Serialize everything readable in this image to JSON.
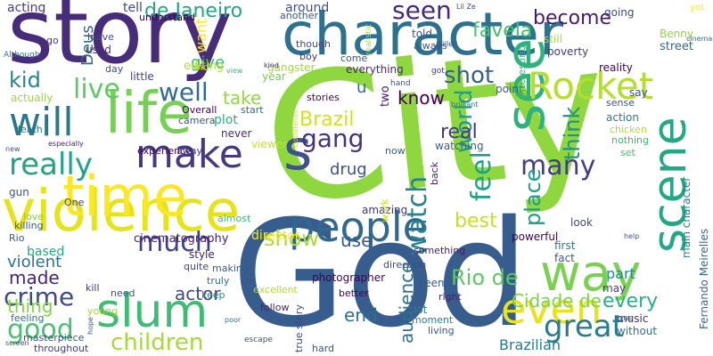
{
  "words": [
    {
      "text": "City",
      "color": "#8ed73f"
    },
    {
      "text": "God",
      "color": "#365d8d"
    },
    {
      "text": "story",
      "color": "#472c7a"
    },
    {
      "text": "character",
      "color": "#2c718e"
    },
    {
      "text": "violence",
      "color": "#e4e419"
    },
    {
      "text": "life",
      "color": "#75d054"
    },
    {
      "text": "time",
      "color": "#fde725"
    },
    {
      "text": "make",
      "color": "#443983"
    },
    {
      "text": "s",
      "color": "#3b528b"
    },
    {
      "text": "people",
      "color": "#31688e"
    },
    {
      "text": "way",
      "color": "#7ad151"
    },
    {
      "text": "see",
      "color": "#2db27d"
    },
    {
      "text": "Rocket",
      "color": "#b5de2b"
    },
    {
      "text": "scene",
      "color": "#22a884"
    },
    {
      "text": "slum",
      "color": "#3dbc74"
    },
    {
      "text": "even",
      "color": "#e7e419"
    },
    {
      "text": "will",
      "color": "#2a788e"
    },
    {
      "text": "really",
      "color": "#20a386"
    },
    {
      "text": "live",
      "color": "#5ec962"
    },
    {
      "text": "gang",
      "color": "#46337e"
    },
    {
      "text": "watch",
      "color": "#26828e"
    },
    {
      "text": "feel",
      "color": "#1fa187"
    },
    {
      "text": "great",
      "color": "#287c8e"
    },
    {
      "text": "good",
      "color": "#4ac16d"
    },
    {
      "text": "crime",
      "color": "#3e4a89"
    },
    {
      "text": "children",
      "color": "#a5db36"
    },
    {
      "text": "many",
      "color": "#433e85"
    },
    {
      "text": "much",
      "color": "#414287"
    },
    {
      "text": "well",
      "color": "#2f6c8e"
    },
    {
      "text": "world",
      "color": "#1f9e89"
    },
    {
      "text": "seen",
      "color": "#482878"
    },
    {
      "text": "shot",
      "color": "#33638d"
    },
    {
      "text": "kid",
      "color": "#25848e"
    },
    {
      "text": "show",
      "color": "#addc30"
    },
    {
      "text": "Rio de",
      "color": "#5ec962"
    },
    {
      "text": "place",
      "color": "#1e9b8a"
    },
    {
      "text": "think",
      "color": "#21918c"
    },
    {
      "text": "best",
      "color": "#c8e020"
    },
    {
      "text": "become",
      "color": "#481a6c"
    },
    {
      "text": "favela",
      "color": "#44bf70"
    },
    {
      "text": "Brazil",
      "color": "#d2e21b"
    },
    {
      "text": "de Janeiro",
      "color": "#22a785"
    },
    {
      "text": "drug",
      "color": "#3b528b"
    },
    {
      "text": "real",
      "color": "#453882"
    },
    {
      "text": "Cidade de",
      "color": "#7ad151"
    },
    {
      "text": "every",
      "color": "#29af7f"
    },
    {
      "text": "audience",
      "color": "#2d708e"
    },
    {
      "text": "end",
      "color": "#2e6e8e"
    },
    {
      "text": "actor",
      "color": "#3f4788"
    },
    {
      "text": "made",
      "color": "#482475"
    },
    {
      "text": "use",
      "color": "#38598c"
    },
    {
      "text": "thing",
      "color": "#84d44b"
    },
    {
      "text": "violent",
      "color": "#2c728e"
    },
    {
      "text": "take",
      "color": "#90d743"
    },
    {
      "text": "know",
      "color": "#440154"
    },
    {
      "text": "give",
      "color": "#35b779"
    },
    {
      "text": "Deus",
      "color": "#31688e"
    },
    {
      "text": "want",
      "color": "#fde725"
    },
    {
      "text": "Brazilian",
      "color": "#2a788e"
    },
    {
      "text": "part",
      "color": "#238a8d"
    },
    {
      "text": "director",
      "color": "#fde725"
    },
    {
      "text": "based",
      "color": "#26ad81"
    },
    {
      "text": "acting",
      "color": "#433e85"
    },
    {
      "text": "tell",
      "color": "#3e4a89"
    },
    {
      "text": "around",
      "color": "#3b528b"
    },
    {
      "text": "cinematography",
      "color": "#482173"
    },
    {
      "text": "u",
      "color": "#2c718e"
    },
    {
      "text": "two",
      "color": "#482071"
    },
    {
      "text": "editing",
      "color": "#b5de2b"
    },
    {
      "text": "plot",
      "color": "#2db27d"
    },
    {
      "text": "photographer",
      "color": "#440154"
    },
    {
      "text": "Fernando Meirelles",
      "color": "#2f6b8e"
    },
    {
      "text": "main character",
      "color": "#26828e"
    },
    {
      "text": "become",
      "color": "#481a6c"
    },
    {
      "text": "little",
      "color": "#414287"
    },
    {
      "text": "year",
      "color": "#75d054"
    },
    {
      "text": "gangster",
      "color": "#a2da37"
    },
    {
      "text": "everything",
      "color": "#482677"
    },
    {
      "text": "reality",
      "color": "#440154"
    },
    {
      "text": "say",
      "color": "#3b528b"
    },
    {
      "text": "look",
      "color": "#3e4989"
    },
    {
      "text": "first",
      "color": "#2a788e"
    },
    {
      "text": "may",
      "color": "#453882"
    },
    {
      "text": "music",
      "color": "#46307e"
    },
    {
      "text": "without",
      "color": "#2d708e"
    },
    {
      "text": "true story",
      "color": "#3e4a89"
    },
    {
      "text": "lot",
      "color": "#23888e"
    },
    {
      "text": "seem",
      "color": "#375b8d"
    },
    {
      "text": "powerful",
      "color": "#440154"
    },
    {
      "text": "fact",
      "color": "#365c8d"
    },
    {
      "text": "amazing",
      "color": "#46327e"
    },
    {
      "text": "watching",
      "color": "#35608d"
    },
    {
      "text": "action",
      "color": "#287d8e"
    },
    {
      "text": "stories",
      "color": "#440154"
    },
    {
      "text": "real",
      "color": "#453882"
    },
    {
      "text": "poverty",
      "color": "#443983"
    },
    {
      "text": "street",
      "color": "#31688e"
    },
    {
      "text": "Benny",
      "color": "#8ed73f"
    },
    {
      "text": "going",
      "color": "#3e4989"
    },
    {
      "text": "still",
      "color": "#a8db34"
    },
    {
      "text": "told",
      "color": "#3b518b"
    },
    {
      "text": "always",
      "color": "#3b528b"
    },
    {
      "text": "understand",
      "color": "#440154"
    },
    {
      "text": "another",
      "color": "#3b528b"
    },
    {
      "text": "used",
      "color": "#472a7a"
    },
    {
      "text": "leave",
      "color": "#3e4a89"
    },
    {
      "text": "go",
      "color": "#453581"
    },
    {
      "text": "Overall",
      "color": "#440154"
    },
    {
      "text": "start",
      "color": "#2c728e"
    },
    {
      "text": "camera",
      "color": "#39568c"
    },
    {
      "text": "find",
      "color": "#d8e219"
    },
    {
      "text": "day",
      "color": "#3b528b"
    },
    {
      "text": "never",
      "color": "#482878"
    },
    {
      "text": "viewer",
      "color": "#c8e020"
    },
    {
      "text": "experience",
      "color": "#440154"
    },
    {
      "text": "away",
      "color": "#443983"
    },
    {
      "text": "almost",
      "color": "#3dbc74"
    },
    {
      "text": "style",
      "color": "#481b6d"
    },
    {
      "text": "making",
      "color": "#38598c"
    },
    {
      "text": "quite",
      "color": "#3f4788"
    },
    {
      "text": "young",
      "color": "#a2da37"
    },
    {
      "text": "feeling",
      "color": "#2a768e"
    },
    {
      "text": "masterpiece",
      "color": "#3b528b"
    },
    {
      "text": "throughout",
      "color": "#443983"
    },
    {
      "text": "follow",
      "color": "#482173"
    },
    {
      "text": "better",
      "color": "#440154"
    },
    {
      "text": "moment",
      "color": "#287c8e"
    },
    {
      "text": "living",
      "color": "#38588c"
    },
    {
      "text": "right",
      "color": "#482071"
    },
    {
      "text": "hard",
      "color": "#3b528b"
    },
    {
      "text": "keep",
      "color": "#25858e"
    },
    {
      "text": "truly",
      "color": "#2b748e"
    },
    {
      "text": "kill",
      "color": "#453781"
    },
    {
      "text": "need",
      "color": "#3b528b"
    },
    {
      "text": "excellent",
      "color": "#b0dd2f"
    },
    {
      "text": "something",
      "color": "#481c6e"
    },
    {
      "text": "direction",
      "color": "#3e4989"
    },
    {
      "text": "back",
      "color": "#481f70"
    },
    {
      "text": "work",
      "color": "#c2df23"
    },
    {
      "text": "now",
      "color": "#38598c"
    },
    {
      "text": "killing",
      "color": "#38598c"
    },
    {
      "text": "One",
      "color": "#3f4889"
    },
    {
      "text": "gun",
      "color": "#3b528b"
    },
    {
      "text": "Rio",
      "color": "#39568c"
    },
    {
      "text": "love",
      "color": "#7fd34e"
    },
    {
      "text": "death",
      "color": "#2d718e"
    },
    {
      "text": "actually",
      "color": "#9bd93c"
    },
    {
      "text": "point",
      "color": "#38598c"
    },
    {
      "text": "interesting",
      "color": "#35b779"
    },
    {
      "text": "sense",
      "color": "#3b528b"
    },
    {
      "text": "chicken",
      "color": "#addc30"
    },
    {
      "text": "nothing",
      "color": "#3fbc73"
    },
    {
      "text": "set",
      "color": "#48c16e"
    },
    {
      "text": "boy",
      "color": "#453882"
    },
    {
      "text": "though",
      "color": "#3e4a89"
    },
    {
      "text": "come",
      "color": "#38588c"
    },
    {
      "text": "hand",
      "color": "#3b528b"
    },
    {
      "text": "got",
      "color": "#46337f"
    },
    {
      "text": "true",
      "color": "#2e6f8e"
    },
    {
      "text": "escape",
      "color": "#3b528b"
    },
    {
      "text": "realistic",
      "color": "#b0dd2f"
    },
    {
      "text": "yet",
      "color": "#fde725"
    },
    {
      "text": "Although",
      "color": "#2a788e"
    },
    {
      "text": "new",
      "color": "#3b528b"
    },
    {
      "text": "especially",
      "color": "#482173"
    },
    {
      "text": "screen",
      "color": "#3b528b"
    },
    {
      "text": "poor",
      "color": "#2d708e"
    },
    {
      "text": "hope",
      "color": "#38598c"
    },
    {
      "text": "brilliant",
      "color": "#2c728e"
    },
    {
      "text": "help",
      "color": "#3b528b"
    },
    {
      "text": "Goodfellas",
      "color": "#d8e219"
    },
    {
      "text": "cinema",
      "color": "#2d708e"
    },
    {
      "text": "kind",
      "color": "#482677"
    },
    {
      "text": "killed",
      "color": "#3b528b"
    },
    {
      "text": "Lil Ze",
      "color": "#3e4989"
    },
    {
      "text": "view",
      "color": "#35b779"
    }
  ]
}
